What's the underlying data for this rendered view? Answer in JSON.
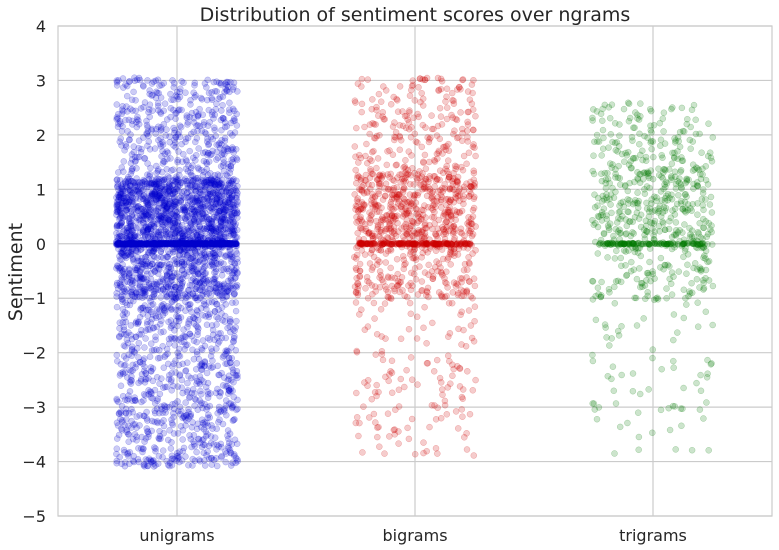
{
  "chart_data": {
    "type": "scatter",
    "title": "Distribution of sentiment scores over ngrams",
    "xlabel": "",
    "ylabel": "Sentiment",
    "ylim": [
      -5,
      4
    ],
    "yticks": [
      -5,
      -4,
      -3,
      -2,
      -1,
      0,
      1,
      2,
      3,
      4
    ],
    "categories": [
      "unigrams",
      "bigrams",
      "trigrams"
    ],
    "grid": true,
    "jitter": true,
    "series": [
      {
        "category": "unigrams",
        "color": "#0000cc",
        "point_count_approx": 3000,
        "zero_cluster": true,
        "min": -4.1,
        "max": 3.05,
        "distribution": [
          {
            "range": [
              -0.1,
              1.2
            ],
            "share": 0.42
          },
          {
            "range": [
              1.2,
              3.05
            ],
            "share": 0.14
          },
          {
            "range": [
              -1.0,
              -0.1
            ],
            "share": 0.18
          },
          {
            "range": [
              -4.1,
              -1.0
            ],
            "share": 0.26
          }
        ]
      },
      {
        "category": "bigrams",
        "color": "#cc0000",
        "point_count_approx": 1100,
        "zero_cluster": true,
        "min": -3.9,
        "max": 3.05,
        "distribution": [
          {
            "range": [
              -0.1,
              1.3
            ],
            "share": 0.5
          },
          {
            "range": [
              1.3,
              3.05
            ],
            "share": 0.2
          },
          {
            "range": [
              -1.0,
              -0.1
            ],
            "share": 0.17
          },
          {
            "range": [
              -3.9,
              -1.0
            ],
            "share": 0.13
          }
        ]
      },
      {
        "category": "trigrams",
        "color": "#007700",
        "point_count_approx": 650,
        "zero_cluster": true,
        "min": -3.9,
        "max": 2.6,
        "distribution": [
          {
            "range": [
              -0.1,
              1.4
            ],
            "share": 0.52
          },
          {
            "range": [
              1.4,
              2.6
            ],
            "share": 0.2
          },
          {
            "range": [
              -1.0,
              -0.1
            ],
            "share": 0.16
          },
          {
            "range": [
              -3.9,
              -1.0
            ],
            "share": 0.12
          }
        ]
      }
    ]
  }
}
